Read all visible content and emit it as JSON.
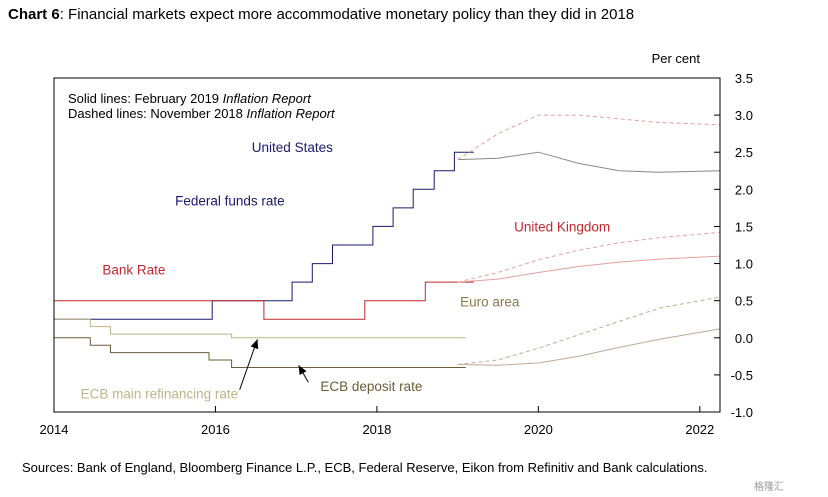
{
  "title": {
    "prefix": "Chart 6",
    "text": "Financial markets expect more accommodative monetary policy than they did in 2018"
  },
  "sources": "Sources:  Bank of England, Bloomberg Finance L.P., ECB, Federal Reserve, Eikon from Refinitiv and Bank calculations.",
  "watermark": "格隆汇",
  "chart_data": {
    "type": "line",
    "title": "Financial markets expect more accommodative monetary policy than they did in 2018",
    "xlabel": "",
    "ylabel": "Per cent",
    "xlim": [
      2014,
      2022.25
    ],
    "ylim": [
      -1.0,
      3.5
    ],
    "x_ticks": [
      2014,
      2016,
      2018,
      2020,
      2022
    ],
    "y_ticks": [
      -1.0,
      -0.5,
      0.0,
      0.5,
      1.0,
      1.5,
      2.0,
      2.5,
      3.0,
      3.5
    ],
    "y_tick_labels": [
      "-1.0",
      "-0.5",
      "0.0",
      "0.5",
      "1.0",
      "1.5",
      "2.0",
      "2.5",
      "3.0",
      "3.5"
    ],
    "y_axis_side": "right",
    "grid": false,
    "legend_notes": [
      {
        "lead": "Solid lines: February 2019 ",
        "italic": "Inflation Report"
      },
      {
        "lead": "Dashed lines: November 2018 ",
        "italic": "Inflation Report"
      }
    ],
    "colors": {
      "us": "#1a1a6e",
      "uk": "#c0282d",
      "euro": "#8a7a4a",
      "ecb_refi": "#bfb48a",
      "ecb_deposit": "#6b5d3a",
      "curve_us": "#8a8a8a",
      "curve_uk": "#e2a2a2",
      "curve_euro": "#c0ab98"
    },
    "labels": [
      {
        "text": "United States",
        "x": 2016.45,
        "y": 2.5,
        "color": "#1a1a6e"
      },
      {
        "text": "Federal funds rate",
        "x": 2015.5,
        "y": 1.78,
        "color": "#1a1a6e"
      },
      {
        "text": "United Kingdom",
        "x": 2019.7,
        "y": 1.43,
        "color": "#c0282d"
      },
      {
        "text": "Bank Rate",
        "x": 2014.6,
        "y": 0.85,
        "color": "#c0282d"
      },
      {
        "text": "Euro area",
        "x": 2019.03,
        "y": 0.42,
        "color": "#8a7a4a"
      },
      {
        "text": "ECB main refinancing rate",
        "x": 2014.33,
        "y": -0.82,
        "color": "#bfb48a"
      },
      {
        "text": "ECB deposit rate",
        "x": 2017.3,
        "y": -0.72,
        "color": "#6b5d3a"
      }
    ],
    "arrows": [
      {
        "from": [
          2016.3,
          -0.7
        ],
        "to": [
          2016.52,
          -0.02
        ]
      },
      {
        "from": [
          2017.15,
          -0.6
        ],
        "to": [
          2017.03,
          -0.37
        ]
      }
    ],
    "series": [
      {
        "name": "Federal funds rate",
        "color": "#1a1a6e",
        "dash": false,
        "x": [
          2014.0,
          2015.96,
          2015.96,
          2016.95,
          2016.95,
          2017.2,
          2017.2,
          2017.45,
          2017.45,
          2017.95,
          2017.95,
          2018.2,
          2018.2,
          2018.45,
          2018.45,
          2018.71,
          2018.71,
          2018.96,
          2018.96,
          2019.2
        ],
        "y": [
          0.25,
          0.25,
          0.5,
          0.5,
          0.75,
          0.75,
          1.0,
          1.0,
          1.25,
          1.25,
          1.5,
          1.5,
          1.75,
          1.75,
          2.0,
          2.0,
          2.25,
          2.25,
          2.5,
          2.5
        ]
      },
      {
        "name": "Federal funds rate market path (Feb 2019)",
        "color": "#8a8a8a",
        "dash": false,
        "x": [
          2019.0,
          2019.5,
          2020.0,
          2020.5,
          2021.0,
          2021.5,
          2022.25
        ],
        "y": [
          2.4,
          2.42,
          2.5,
          2.35,
          2.25,
          2.23,
          2.25
        ]
      },
      {
        "name": "Federal funds rate market path (Nov 2018)",
        "color": "#e2a2a2",
        "dash": true,
        "x": [
          2019.0,
          2019.5,
          2020.0,
          2020.5,
          2021.0,
          2021.5,
          2022.25
        ],
        "y": [
          2.4,
          2.75,
          3.0,
          3.0,
          2.95,
          2.9,
          2.87
        ]
      },
      {
        "name": "Bank Rate",
        "color": "#c0282d",
        "dash": false,
        "x": [
          2014.0,
          2016.6,
          2016.6,
          2017.85,
          2017.85,
          2018.6,
          2018.6,
          2019.2
        ],
        "y": [
          0.5,
          0.5,
          0.25,
          0.25,
          0.5,
          0.5,
          0.75,
          0.75
        ]
      },
      {
        "name": "Bank Rate market path (Feb 2019)",
        "color": "#e2a2a2",
        "dash": false,
        "x": [
          2019.0,
          2019.5,
          2020.0,
          2020.5,
          2021.0,
          2021.5,
          2022.25
        ],
        "y": [
          0.75,
          0.79,
          0.88,
          0.96,
          1.02,
          1.06,
          1.1
        ]
      },
      {
        "name": "Bank Rate market path (Nov 2018)",
        "color": "#e2a2a2",
        "dash": true,
        "x": [
          2019.0,
          2019.5,
          2020.0,
          2020.5,
          2021.0,
          2021.5,
          2022.25
        ],
        "y": [
          0.75,
          0.88,
          1.05,
          1.18,
          1.28,
          1.35,
          1.42
        ]
      },
      {
        "name": "ECB main refinancing rate",
        "color": "#bfb48a",
        "dash": false,
        "x": [
          2014.0,
          2014.45,
          2014.45,
          2014.7,
          2014.7,
          2016.2,
          2016.2,
          2019.1
        ],
        "y": [
          0.25,
          0.25,
          0.15,
          0.15,
          0.05,
          0.05,
          0.0,
          0.0
        ]
      },
      {
        "name": "ECB deposit rate",
        "color": "#6b5d3a",
        "dash": false,
        "x": [
          2014.0,
          2014.45,
          2014.45,
          2014.7,
          2014.7,
          2015.92,
          2015.92,
          2016.2,
          2016.2,
          2019.1
        ],
        "y": [
          0.0,
          0.0,
          -0.1,
          -0.1,
          -0.2,
          -0.2,
          -0.3,
          -0.3,
          -0.4,
          -0.4
        ]
      },
      {
        "name": "Euro area market path (Feb 2019)",
        "color": "#c0ab98",
        "dash": false,
        "x": [
          2019.0,
          2019.5,
          2020.0,
          2020.5,
          2021.0,
          2021.5,
          2022.25
        ],
        "y": [
          -0.36,
          -0.37,
          -0.34,
          -0.25,
          -0.13,
          -0.02,
          0.12
        ]
      },
      {
        "name": "Euro area market path (Nov 2018)",
        "color": "#c0ab98",
        "dash": true,
        "x": [
          2019.0,
          2019.5,
          2020.0,
          2020.5,
          2021.0,
          2021.5,
          2022.25
        ],
        "y": [
          -0.36,
          -0.3,
          -0.14,
          0.04,
          0.22,
          0.4,
          0.55
        ]
      }
    ]
  }
}
